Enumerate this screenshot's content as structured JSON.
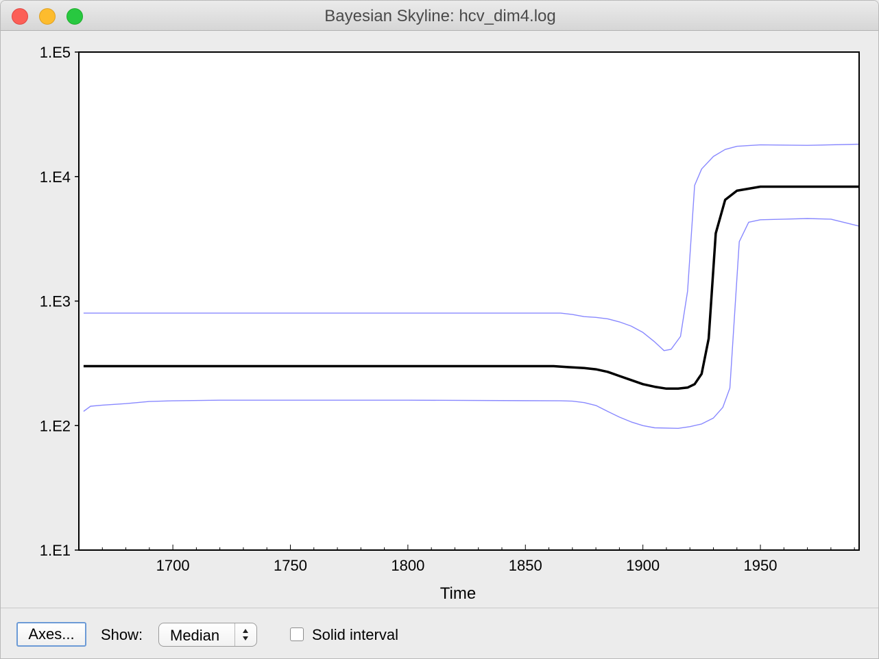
{
  "window": {
    "title": "Bayesian Skyline: hcv_dim4.log"
  },
  "toolbar": {
    "axes_button": "Axes...",
    "show_label": "Show:",
    "show_value": "Median",
    "solid_interval_label": "Solid interval",
    "solid_interval_checked": false
  },
  "chart_data": {
    "type": "line",
    "xlabel": "Time",
    "ylabel": "",
    "xlim": [
      1660,
      1992
    ],
    "ylim": [
      10,
      100000
    ],
    "yscale": "log",
    "x_ticks": [
      1700,
      1750,
      1800,
      1850,
      1900,
      1950
    ],
    "x_tick_labels": [
      "1700",
      "1750",
      "1800",
      "1850",
      "1900",
      "1950"
    ],
    "y_ticks": [
      10,
      100,
      1000,
      10000,
      100000
    ],
    "y_tick_labels": [
      "1.E1",
      "1.E2",
      "1.E3",
      "1.E4",
      "1.E5"
    ],
    "grid": false,
    "legend": "none",
    "series": [
      {
        "role": "upper",
        "color": "#8888ff",
        "points": [
          [
            1662,
            800
          ],
          [
            1865,
            800
          ],
          [
            1870,
            780
          ],
          [
            1875,
            750
          ],
          [
            1880,
            740
          ],
          [
            1885,
            720
          ],
          [
            1890,
            680
          ],
          [
            1895,
            630
          ],
          [
            1900,
            560
          ],
          [
            1905,
            470
          ],
          [
            1909,
            400
          ],
          [
            1912,
            410
          ],
          [
            1916,
            520
          ],
          [
            1919,
            1200
          ],
          [
            1922,
            8500
          ],
          [
            1925,
            11500
          ],
          [
            1930,
            14500
          ],
          [
            1935,
            16500
          ],
          [
            1940,
            17500
          ],
          [
            1950,
            18000
          ],
          [
            1970,
            17800
          ],
          [
            1992,
            18200
          ]
        ]
      },
      {
        "role": "median",
        "color": "#000000",
        "points": [
          [
            1662,
            300
          ],
          [
            1862,
            300
          ],
          [
            1868,
            295
          ],
          [
            1875,
            290
          ],
          [
            1880,
            283
          ],
          [
            1885,
            270
          ],
          [
            1890,
            250
          ],
          [
            1895,
            232
          ],
          [
            1900,
            215
          ],
          [
            1905,
            205
          ],
          [
            1910,
            198
          ],
          [
            1915,
            198
          ],
          [
            1919,
            202
          ],
          [
            1922,
            215
          ],
          [
            1925,
            260
          ],
          [
            1928,
            500
          ],
          [
            1931,
            3500
          ],
          [
            1935,
            6500
          ],
          [
            1940,
            7700
          ],
          [
            1950,
            8300
          ],
          [
            1992,
            8300
          ]
        ]
      },
      {
        "role": "lower",
        "color": "#8888ff",
        "points": [
          [
            1662,
            130
          ],
          [
            1665,
            143
          ],
          [
            1670,
            146
          ],
          [
            1680,
            150
          ],
          [
            1690,
            156
          ],
          [
            1700,
            158
          ],
          [
            1720,
            160
          ],
          [
            1800,
            160
          ],
          [
            1865,
            158
          ],
          [
            1870,
            157
          ],
          [
            1875,
            153
          ],
          [
            1880,
            145
          ],
          [
            1885,
            130
          ],
          [
            1890,
            117
          ],
          [
            1895,
            107
          ],
          [
            1900,
            100
          ],
          [
            1905,
            96
          ],
          [
            1915,
            95
          ],
          [
            1920,
            98
          ],
          [
            1925,
            103
          ],
          [
            1930,
            115
          ],
          [
            1934,
            140
          ],
          [
            1937,
            200
          ],
          [
            1941,
            3000
          ],
          [
            1945,
            4300
          ],
          [
            1950,
            4500
          ],
          [
            1960,
            4550
          ],
          [
            1970,
            4600
          ],
          [
            1980,
            4550
          ],
          [
            1992,
            4000
          ]
        ]
      }
    ]
  }
}
